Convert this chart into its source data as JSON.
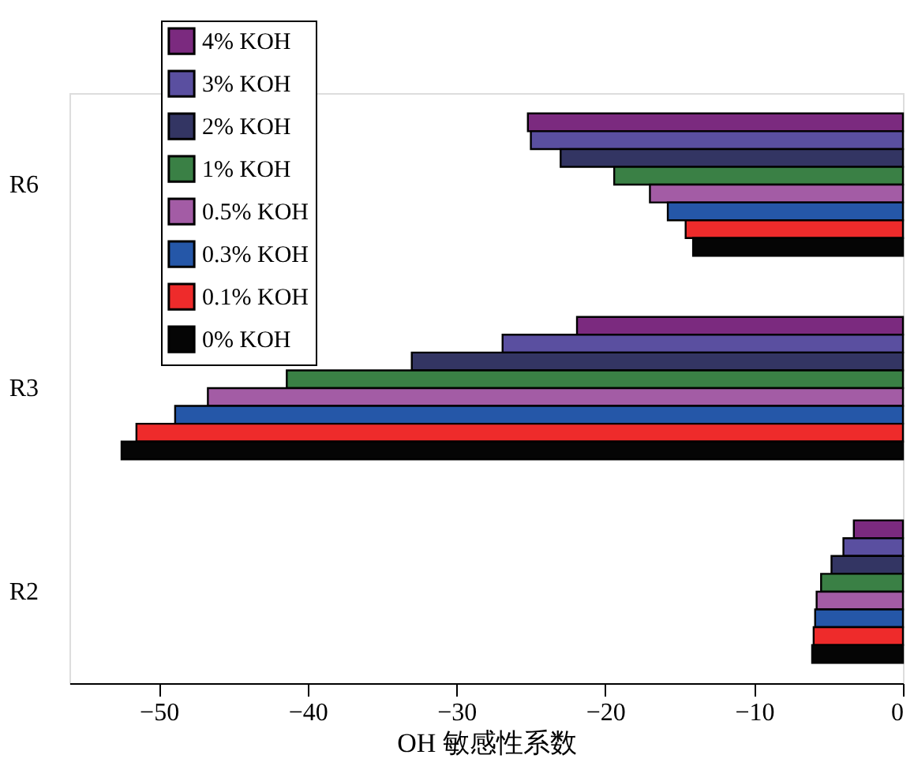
{
  "chart_data": {
    "type": "bar",
    "orientation": "horizontal",
    "xlabel": "OH 敏感性系数",
    "categories": [
      "R6",
      "R3",
      "R2"
    ],
    "series": [
      {
        "name": "4% KOH",
        "color": "#7b2a7f",
        "values": [
          -25.2,
          -21.9,
          -3.3
        ]
      },
      {
        "name": "3% KOH",
        "color": "#5a4fa0",
        "values": [
          -25.0,
          -26.9,
          -4.0
        ]
      },
      {
        "name": "2% KOH",
        "color": "#333563",
        "values": [
          -23.0,
          -33.0,
          -4.8
        ]
      },
      {
        "name": "1% KOH",
        "color": "#3a8045",
        "values": [
          -19.4,
          -41.4,
          -5.5
        ]
      },
      {
        "name": "0.5% KOH",
        "color": "#a35ca5",
        "values": [
          -17.0,
          -46.7,
          -5.8
        ]
      },
      {
        "name": "0.3% KOH",
        "color": "#2557a8",
        "values": [
          -15.8,
          -48.9,
          -5.9
        ]
      },
      {
        "name": "0.1% KOH",
        "color": "#ee2b2b",
        "values": [
          -14.6,
          -51.5,
          -6.0
        ]
      },
      {
        "name": "0% KOH",
        "color": "#050505",
        "values": [
          -14.1,
          -52.5,
          -6.1
        ]
      }
    ],
    "xlim": [
      -56,
      0
    ],
    "xticks": [
      -50,
      -40,
      -30,
      -20,
      -10,
      0
    ],
    "legend": "top left",
    "grid": false
  }
}
